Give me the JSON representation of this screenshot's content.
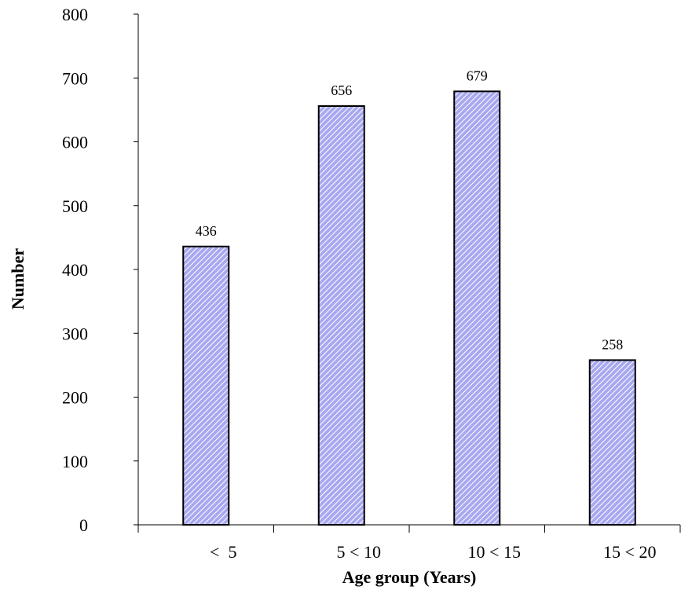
{
  "chart_data": {
    "type": "bar",
    "categories": [
      "<  5",
      "5 < 10",
      "10 < 15",
      "15 < 20"
    ],
    "values": [
      436,
      656,
      679,
      258
    ],
    "title": "",
    "xlabel": "Age group (Years)",
    "ylabel": "Number",
    "ylim": [
      0,
      800
    ],
    "yticks": [
      0,
      100,
      200,
      300,
      400,
      500,
      600,
      700,
      800
    ],
    "grid": false,
    "legend": "none",
    "bar_fill": "#a8a8f0",
    "bar_hatch": "#ffffff",
    "bar_outline": "#000000"
  }
}
